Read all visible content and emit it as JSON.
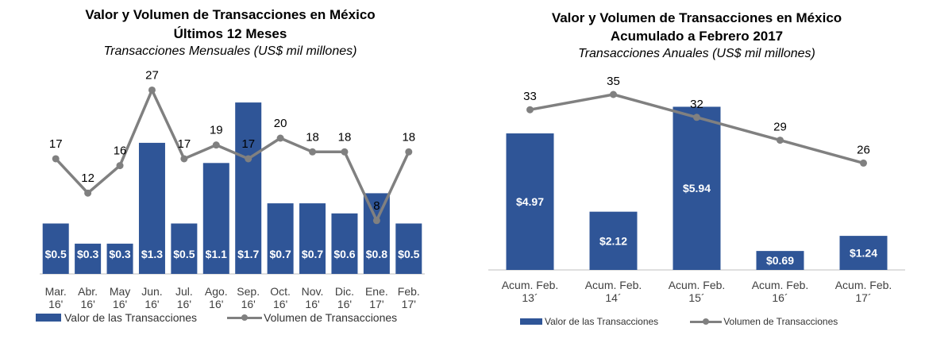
{
  "colors": {
    "bar": "#2F5597",
    "line": "#808080",
    "axis": "#BFBFBF"
  },
  "chart_data": [
    {
      "type": "bar",
      "title": "Valor y Volumen de Transacciones en México",
      "subtitle": "Últimos 12 Meses",
      "subtitle2": "Transacciones Mensuales (US$ mil millones)",
      "categories": [
        [
          "Mar.",
          "16'"
        ],
        [
          "Abr.",
          "16'"
        ],
        [
          "May",
          "16'"
        ],
        [
          "Jun.",
          "16'"
        ],
        [
          "Jul.",
          "16'"
        ],
        [
          "Ago.",
          "16'"
        ],
        [
          "Sep.",
          "16'"
        ],
        [
          "Oct.",
          "16'"
        ],
        [
          "Nov.",
          "16'"
        ],
        [
          "Dic.",
          "16'"
        ],
        [
          "Ene.",
          "17'"
        ],
        [
          "Feb.",
          "17'"
        ]
      ],
      "series": [
        {
          "name": "Valor de las Transacciones",
          "type": "bar",
          "values": [
            0.5,
            0.3,
            0.3,
            1.3,
            0.5,
            1.1,
            1.7,
            0.7,
            0.7,
            0.6,
            0.8,
            0.5
          ],
          "labels": [
            "$0.5",
            "$0.3",
            "$0.3",
            "$1.3",
            "$0.5",
            "$1.1",
            "$1.7",
            "$0.7",
            "$0.7",
            "$0.6",
            "$0.8",
            "$0.5"
          ]
        },
        {
          "name": "Volumen de Transacciones",
          "type": "line",
          "values": [
            17,
            12,
            16,
            27,
            17,
            19,
            17,
            20,
            18,
            18,
            8,
            18
          ],
          "labels": [
            "17",
            "12",
            "16",
            "27",
            "17",
            "19",
            "17",
            "20",
            "18",
            "18",
            "8",
            "18"
          ]
        }
      ],
      "legend": "bottom"
    },
    {
      "type": "bar",
      "title": "Valor y Volumen de Transacciones en México",
      "subtitle": "Acumulado a Febrero 2017",
      "subtitle2": "Transacciones Anuales (US$ mil millones)",
      "categories": [
        [
          "Acum. Feb.",
          "13´"
        ],
        [
          "Acum. Feb.",
          "14´"
        ],
        [
          "Acum. Feb.",
          "15´"
        ],
        [
          "Acum. Feb.",
          "16´"
        ],
        [
          "Acum. Feb.",
          "17´"
        ]
      ],
      "series": [
        {
          "name": "Valor de las Transacciones",
          "type": "bar",
          "values": [
            4.97,
            2.12,
            5.94,
            0.69,
            1.24
          ],
          "labels": [
            "$4.97",
            "$2.12",
            "$5.94",
            "$0.69",
            "$1.24"
          ]
        },
        {
          "name": "Volumen de Transacciones",
          "type": "line",
          "values": [
            33,
            35,
            32,
            29,
            26
          ],
          "labels": [
            "33",
            "35",
            "32",
            "29",
            "26"
          ]
        }
      ],
      "legend": "bottom"
    }
  ]
}
